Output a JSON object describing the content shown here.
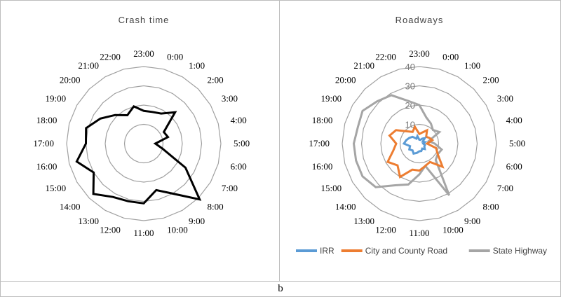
{
  "figure_label": "b",
  "chart_data": [
    {
      "type": "radar",
      "title": "Crash time",
      "categories": [
        "0:00",
        "1:00",
        "2:00",
        "3:00",
        "4:00",
        "5:00",
        "6:00",
        "7:00",
        "8:00",
        "9:00",
        "10:00",
        "11:00",
        "12:00",
        "13:00",
        "14:00",
        "15:00",
        "16:00",
        "17:00",
        "18:00",
        "19:00",
        "20:00",
        "21:00",
        "22:00",
        "23:00"
      ],
      "radial_levels": 4,
      "rlim": [
        0,
        40
      ],
      "grid": true,
      "series": [
        {
          "name": "",
          "color": "#000000",
          "values": [
            17,
            18,
            23,
            12,
            13,
            6,
            10,
            25,
            41,
            30,
            25,
            31,
            31,
            32,
            37,
            30,
            36,
            30,
            31,
            26,
            21,
            17,
            20,
            17
          ]
        }
      ]
    },
    {
      "type": "radar",
      "title": "Roadways",
      "categories": [
        "0:00",
        "1:00",
        "2:00",
        "3:00",
        "4:00",
        "5:00",
        "6:00",
        "7:00",
        "8:00",
        "9:00",
        "10:00",
        "11:00",
        "12:00",
        "13:00",
        "14:00",
        "15:00",
        "16:00",
        "17:00",
        "18:00",
        "19:00",
        "20:00",
        "21:00",
        "22:00",
        "23:00"
      ],
      "radial_levels": 4,
      "rlim": [
        0,
        40
      ],
      "r_ticks": [
        "10",
        "20",
        "30",
        "40"
      ],
      "grid": true,
      "legend_position": "bottom",
      "series": [
        {
          "name": "IRR",
          "color": "#5b9bd5",
          "values": [
            2,
            3,
            4,
            2,
            3,
            2,
            3,
            3,
            4,
            3,
            4,
            4,
            5,
            6,
            5,
            6,
            5,
            8,
            7,
            6,
            5,
            3,
            4,
            2
          ]
        },
        {
          "name": "City and County Road",
          "color": "#ed7d31",
          "values": [
            6,
            8,
            5,
            6,
            7,
            4,
            9,
            11,
            17,
            11,
            12,
            14,
            14,
            20,
            16,
            19,
            14,
            12,
            16,
            14,
            9,
            7,
            9,
            5
          ]
        },
        {
          "name": "State Highway",
          "color": "#a5a5a5",
          "values": [
            14,
            12,
            10,
            12,
            5,
            8,
            12,
            11,
            12,
            31,
            12,
            16,
            22,
            25,
            32,
            34,
            34,
            34,
            33,
            34,
            31,
            29,
            23,
            20
          ]
        }
      ]
    }
  ]
}
